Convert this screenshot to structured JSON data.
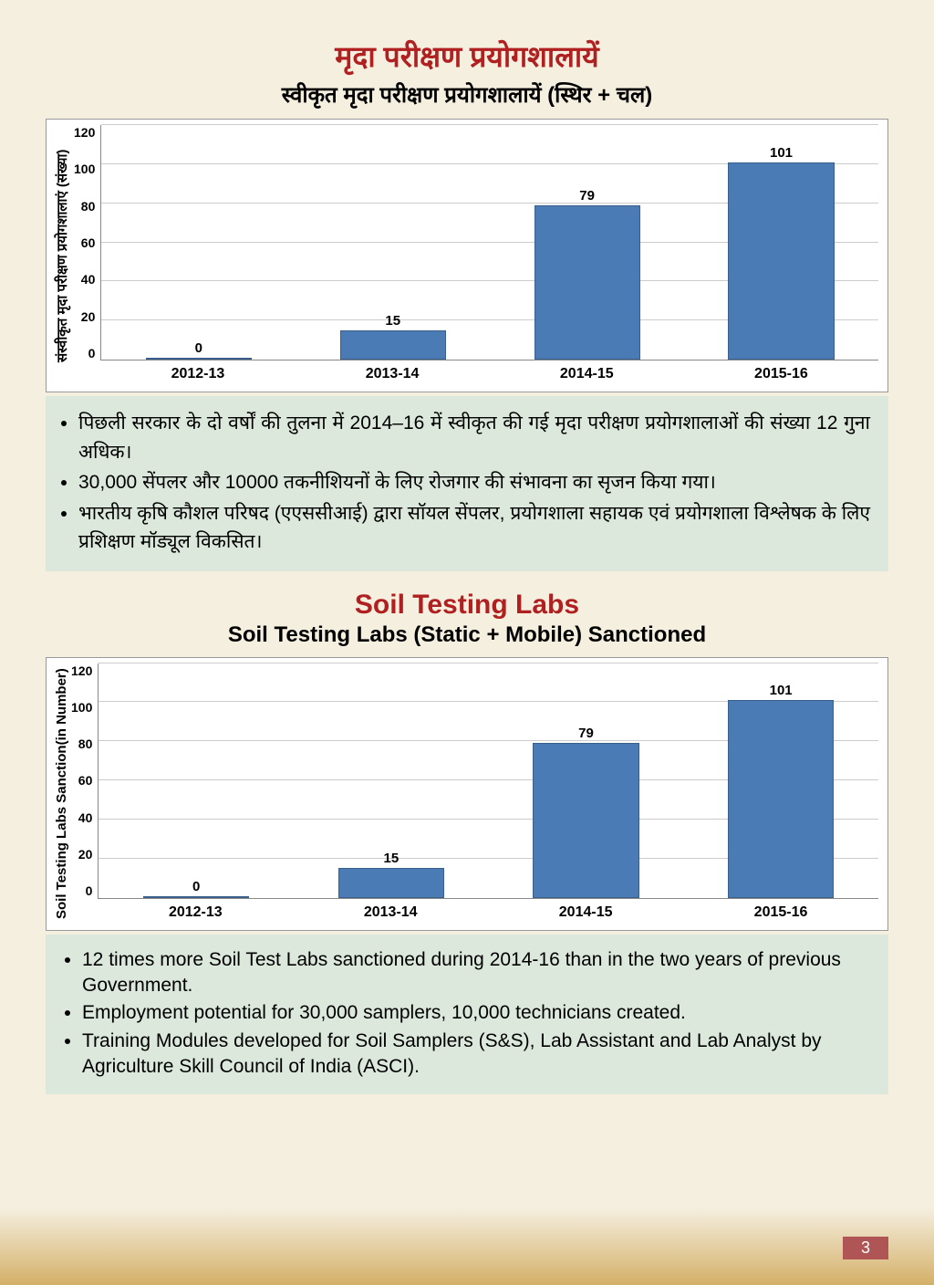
{
  "hindi": {
    "title": "मृदा परीक्षण प्रयोगशालायें",
    "subtitle": "स्वीकृत मृदा परीक्षण प्रयोगशालायें (स्थिर + चल)",
    "ylabel": "संस्वीकृत मृदा परीक्षण प्रयोगशालाएं (संख्या)",
    "bullets": [
      "पिछली सरकार के दो वर्षों की तुलना में 2014–16 में स्वीकृत की गई मृदा परीक्षण प्रयोगशालाओं की संख्या 12 गुना अधिक।",
      "30,000 सेंपलर और 10000 तकनीशियनों के लिए रोजगार की संभावना का सृजन किया गया।",
      "भारतीय कृषि कौशल परिषद (एएससीआई) द्वारा सॉयल सेंपलर, प्रयोगशाला सहायक एवं प्रयोगशाला विश्लेषक के लिए प्रशिक्षण मॉड्यूल विकसित।"
    ]
  },
  "english": {
    "title": "Soil Testing Labs",
    "subtitle": "Soil Testing Labs (Static + Mobile) Sanctioned",
    "ylabel": "Soil Testing Labs Sanction(in Number)",
    "bullets": [
      "12 times more Soil Test Labs sanctioned during 2014-16 than in the two years of previous Government.",
      "Employment potential for 30,000 samplers, 10,000 technicians created.",
      "Training Modules developed for Soil Samplers (S&S), Lab Assistant and Lab Analyst by  Agriculture Skill Council of India (ASCI)."
    ]
  },
  "chart": {
    "categories": [
      "2012-13",
      "2013-14",
      "2014-15",
      "2015-16"
    ],
    "values": [
      0,
      15,
      79,
      101
    ],
    "ymax": 120,
    "yticks": [
      "120",
      "100",
      "80",
      "60",
      "40",
      "20",
      "0"
    ],
    "bar_color": "#4a7bb5",
    "grid_color": "#cccccc"
  },
  "page": "3"
}
